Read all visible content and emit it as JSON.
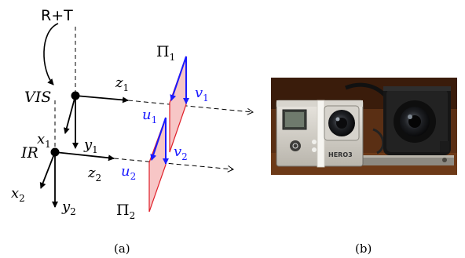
{
  "colors": {
    "blue": "#1a1aff",
    "red": "#e0202a",
    "pink": "#f7c6c6",
    "ink": "#000000"
  },
  "diagram": {
    "rt_label": "R+T",
    "vis": {
      "name": "VIS",
      "x": "x",
      "x_sub": "1",
      "y": "y",
      "y_sub": "1",
      "z": "z",
      "z_sub": "1"
    },
    "ir": {
      "name": "IR",
      "x": "x",
      "x_sub": "2",
      "y": "y",
      "y_sub": "2",
      "z": "z",
      "z_sub": "2"
    },
    "plane1": {
      "label": "Π",
      "sub": "1",
      "u": "u",
      "u_sub": "1",
      "v": "v",
      "v_sub": "1"
    },
    "plane2": {
      "label": "Π",
      "sub": "2",
      "u": "u",
      "u_sub": "2",
      "v": "v",
      "v_sub": "2"
    }
  },
  "photo": {
    "camera_brand": "HERO3"
  },
  "captions": {
    "left": "(a)",
    "right": "(b)"
  }
}
